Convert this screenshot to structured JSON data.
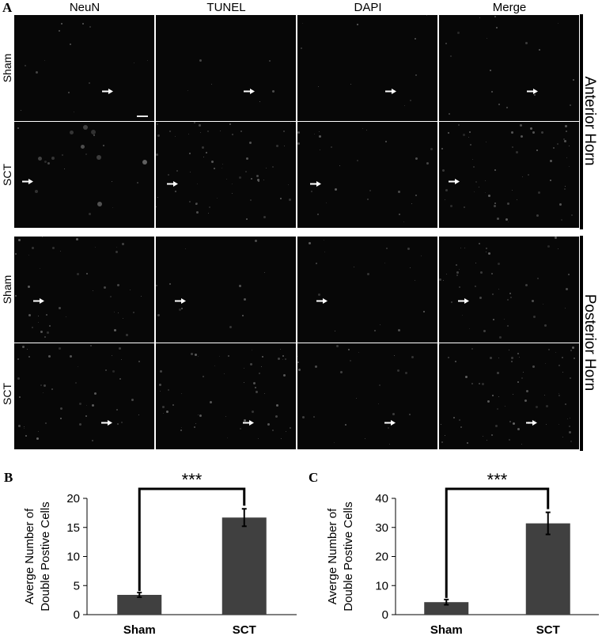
{
  "panel_a": {
    "letter": "A",
    "columns": [
      "NeuN",
      "TUNEL",
      "DAPI",
      "Merge"
    ],
    "rows": [
      "Sham",
      "SCT",
      "Sham",
      "SCT"
    ],
    "groups": [
      "Anterior Horn",
      "Posterior Horn"
    ]
  },
  "chart_data": [
    {
      "panel": "B",
      "type": "bar",
      "categories": [
        "Sham",
        "SCT"
      ],
      "values": [
        3.4,
        16.7
      ],
      "error": [
        0.4,
        1.5
      ],
      "ylabel_line1": "Averge Number of",
      "ylabel_line2": "Double Postive Cells",
      "ylim": [
        0,
        20
      ],
      "yticks": [
        0,
        5,
        10,
        15,
        20
      ],
      "significance": "***",
      "bar_color": "#404040"
    },
    {
      "panel": "C",
      "type": "bar",
      "categories": [
        "Sham",
        "SCT"
      ],
      "values": [
        4.3,
        31.4
      ],
      "error": [
        0.9,
        3.8
      ],
      "ylabel_line1": "Averge Number of",
      "ylabel_line2": "Double Postive Cells",
      "ylim": [
        0,
        40
      ],
      "yticks": [
        0,
        10,
        20,
        30,
        40
      ],
      "significance": "***",
      "bar_color": "#404040"
    }
  ]
}
